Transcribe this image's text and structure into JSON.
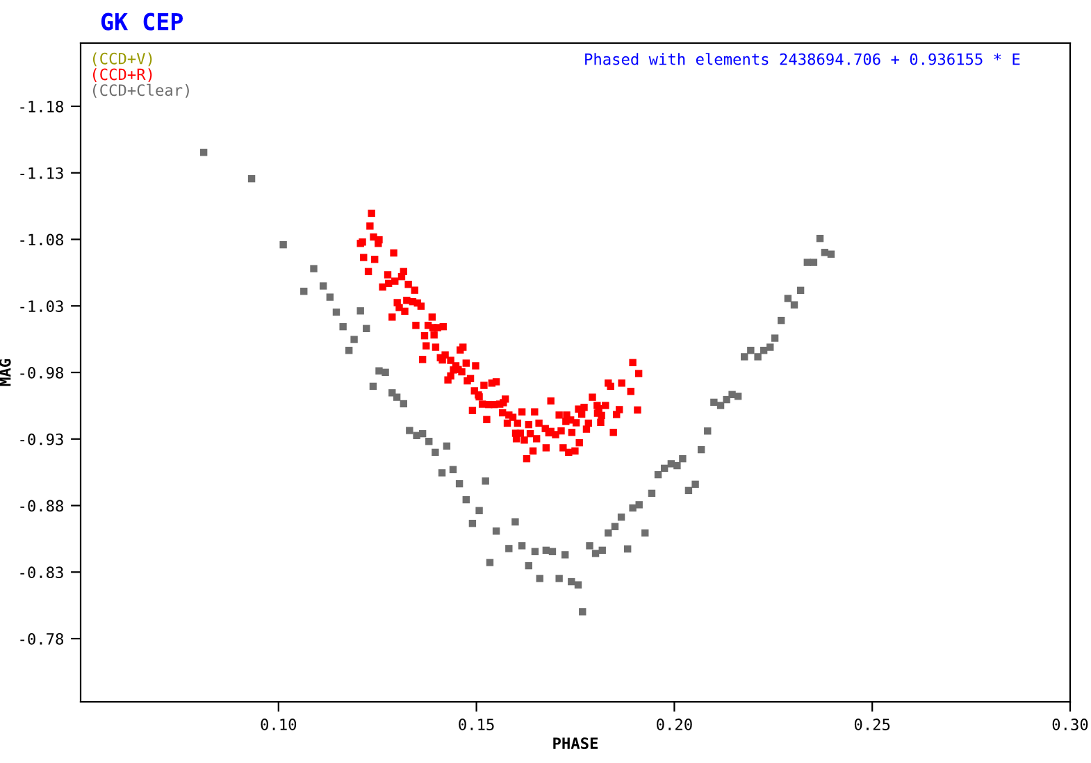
{
  "chart_data": {
    "type": "scatter",
    "title": "GK CEP",
    "xlabel": "PHASE",
    "ylabel": "MAG",
    "annotations": [
      "Phased with elements 2438694.706 + 0.936155 * E"
    ],
    "xlim": [
      0.05,
      0.3
    ],
    "ylim": [
      -0.7325,
      -1.2275
    ],
    "xticks": [
      {
        "value": 0.1,
        "label": "0.10"
      },
      {
        "value": 0.15,
        "label": "0.15"
      },
      {
        "value": 0.2,
        "label": "0.20"
      },
      {
        "value": 0.25,
        "label": "0.25"
      },
      {
        "value": 0.3,
        "label": "0.30"
      }
    ],
    "yticks": [
      -1.18,
      -1.13,
      -1.08,
      -1.03,
      -0.98,
      -0.93,
      -0.88,
      -0.83,
      -0.78
    ],
    "grid": false,
    "legend": "top left",
    "marker": "square",
    "series": [
      {
        "name": "(CCD+V)",
        "color": "#999900"
      },
      {
        "name": "(CCD+R)",
        "color": "#ff0000",
        "x": [
          0.1235,
          0.1231,
          0.124,
          0.1254,
          0.1252,
          0.1207,
          0.1212,
          0.1215,
          0.1243,
          0.1291,
          0.1227,
          0.1276,
          0.1316,
          0.1311,
          0.1294,
          0.1278,
          0.1263,
          0.1328,
          0.1344,
          0.13,
          0.1324,
          0.1339,
          0.1351,
          0.136,
          0.1305,
          0.1319,
          0.1287,
          0.1388,
          0.1347,
          0.1378,
          0.139,
          0.1402,
          0.1416,
          0.1393,
          0.1369,
          0.1373,
          0.1397,
          0.1459,
          0.1466,
          0.1421,
          0.1409,
          0.1435,
          0.1414,
          0.1364,
          0.1448,
          0.1474,
          0.1498,
          0.1442,
          0.1454,
          0.1463,
          0.1435,
          0.1428,
          0.1485,
          0.1477,
          0.1495,
          0.1505,
          0.1519,
          0.1539,
          0.155,
          0.1507,
          0.1515,
          0.1531,
          0.1545,
          0.1559,
          0.1573,
          0.1568,
          0.149,
          0.1526,
          0.1566,
          0.1582,
          0.1592,
          0.1578,
          0.1615,
          0.1647,
          0.1604,
          0.1632,
          0.1658,
          0.1688,
          0.1674,
          0.1688,
          0.1714,
          0.17,
          0.1683,
          0.1709,
          0.1728,
          0.1726,
          0.1738,
          0.1752,
          0.1599,
          0.1611,
          0.1601,
          0.1621,
          0.1636,
          0.1652,
          0.1741,
          0.176,
          0.1719,
          0.1733,
          0.1749,
          0.1676,
          0.1643,
          0.1627,
          0.1758,
          0.1772,
          0.1793,
          0.1805,
          0.1806,
          0.1816,
          0.1826,
          0.1833,
          0.1839,
          0.1867,
          0.1861,
          0.1854,
          0.1814,
          0.1783,
          0.1778,
          0.1846,
          0.189,
          0.1895,
          0.191,
          0.1907,
          0.1809,
          0.1766
        ],
        "values": [
          -1.0996,
          -1.09,
          -1.0818,
          -1.0797,
          -1.077,
          -1.077,
          -1.078,
          -1.0664,
          -1.065,
          -1.0698,
          -1.0558,
          -1.0534,
          -1.0558,
          -1.052,
          -1.0486,
          -1.0469,
          -1.0442,
          -1.0462,
          -1.0418,
          -1.0325,
          -1.0342,
          -1.0332,
          -1.0322,
          -1.0298,
          -1.0288,
          -1.026,
          -1.0216,
          -1.0216,
          -1.0154,
          -1.0154,
          -1.0137,
          -1.0137,
          -1.0144,
          -1.0082,
          -1.0076,
          -1.0,
          -0.999,
          -0.9969,
          -0.999,
          -0.9932,
          -0.9911,
          -0.9891,
          -0.9894,
          -0.9898,
          -0.985,
          -0.987,
          -0.985,
          -0.9819,
          -0.9822,
          -0.9805,
          -0.9774,
          -0.9744,
          -0.9754,
          -0.9737,
          -0.9662,
          -0.9631,
          -0.9703,
          -0.972,
          -0.973,
          -0.9617,
          -0.9562,
          -0.9559,
          -0.9559,
          -0.9562,
          -0.96,
          -0.9573,
          -0.9514,
          -0.9446,
          -0.9497,
          -0.948,
          -0.9463,
          -0.9419,
          -0.9504,
          -0.9504,
          -0.9419,
          -0.9408,
          -0.9419,
          -0.9586,
          -0.9378,
          -0.9357,
          -0.9361,
          -0.9333,
          -0.9347,
          -0.948,
          -0.948,
          -0.9432,
          -0.9443,
          -0.9422,
          -0.9343,
          -0.9343,
          -0.9302,
          -0.9292,
          -0.934,
          -0.9302,
          -0.935,
          -0.9272,
          -0.9234,
          -0.92,
          -0.921,
          -0.9234,
          -0.921,
          -0.9152,
          -0.9525,
          -0.9538,
          -0.9614,
          -0.9552,
          -0.9494,
          -0.9477,
          -0.9552,
          -0.972,
          -0.9696,
          -0.972,
          -0.9521,
          -0.9484,
          -0.9425,
          -0.9419,
          -0.9374,
          -0.935,
          -0.9658,
          -0.9874,
          -0.9792,
          -0.9518,
          -0.9528,
          -0.9487
        ]
      },
      {
        "name": "(CCD+Clear)",
        "color": "#6e6e6e",
        "x": [
          0.0811,
          0.0932,
          0.1012,
          0.1089,
          0.1064,
          0.1113,
          0.113,
          0.1146,
          0.1163,
          0.1207,
          0.1222,
          0.1191,
          0.1178,
          0.1254,
          0.127,
          0.1239,
          0.1287,
          0.1299,
          0.1316,
          0.1331,
          0.1349,
          0.1364,
          0.138,
          0.1396,
          0.1425,
          0.1413,
          0.1441,
          0.1457,
          0.1474,
          0.1507,
          0.149,
          0.1523,
          0.155,
          0.1534,
          0.1598,
          0.1582,
          0.1615,
          0.1632,
          0.1648,
          0.1676,
          0.1692,
          0.166,
          0.1709,
          0.1724,
          0.174,
          0.1757,
          0.1768,
          0.1786,
          0.1801,
          0.1818,
          0.1833,
          0.185,
          0.1866,
          0.1882,
          0.1895,
          0.1911,
          0.1926,
          0.1943,
          0.1959,
          0.1975,
          0.1992,
          0.2007,
          0.2021,
          0.2036,
          0.2053,
          0.2068,
          0.2084,
          0.21,
          0.2117,
          0.2132,
          0.2146,
          0.2161,
          0.2177,
          0.2193,
          0.2211,
          0.2226,
          0.2242,
          0.2254,
          0.227,
          0.2287,
          0.2303,
          0.2319,
          0.2336,
          0.2352,
          0.2368,
          0.238,
          0.2396
        ],
        "values": [
          -1.1454,
          -1.1256,
          -1.076,
          -1.058,
          -1.041,
          -1.045,
          -1.0366,
          -1.0253,
          -1.0144,
          -1.0263,
          -1.013,
          -1.0048,
          -0.9966,
          -0.9812,
          -0.9801,
          -0.9696,
          -0.9647,
          -0.9614,
          -0.9565,
          -0.9364,
          -0.9326,
          -0.934,
          -0.9282,
          -0.92,
          -0.9247,
          -0.9046,
          -0.907,
          -0.8964,
          -0.8844,
          -0.8762,
          -0.8666,
          -0.8984,
          -0.8608,
          -0.8372,
          -0.8677,
          -0.8477,
          -0.8498,
          -0.8348,
          -0.8454,
          -0.8464,
          -0.8454,
          -0.8252,
          -0.8252,
          -0.843,
          -0.8228,
          -0.8204,
          -0.8002,
          -0.8498,
          -0.844,
          -0.8464,
          -0.8594,
          -0.8642,
          -0.8713,
          -0.8474,
          -0.8782,
          -0.8806,
          -0.8594,
          -0.8892,
          -0.9032,
          -0.908,
          -0.9114,
          -0.91,
          -0.9152,
          -0.8913,
          -0.896,
          -0.922,
          -0.936,
          -0.9576,
          -0.9552,
          -0.9596,
          -0.9634,
          -0.9621,
          -0.9918,
          -0.9966,
          -0.9918,
          -0.9966,
          -0.999,
          -1.0058,
          -1.0191,
          -1.0356,
          -1.0308,
          -1.0417,
          -1.0627,
          -1.0627,
          -1.0807,
          -1.0702,
          -1.0689
        ]
      }
    ]
  }
}
